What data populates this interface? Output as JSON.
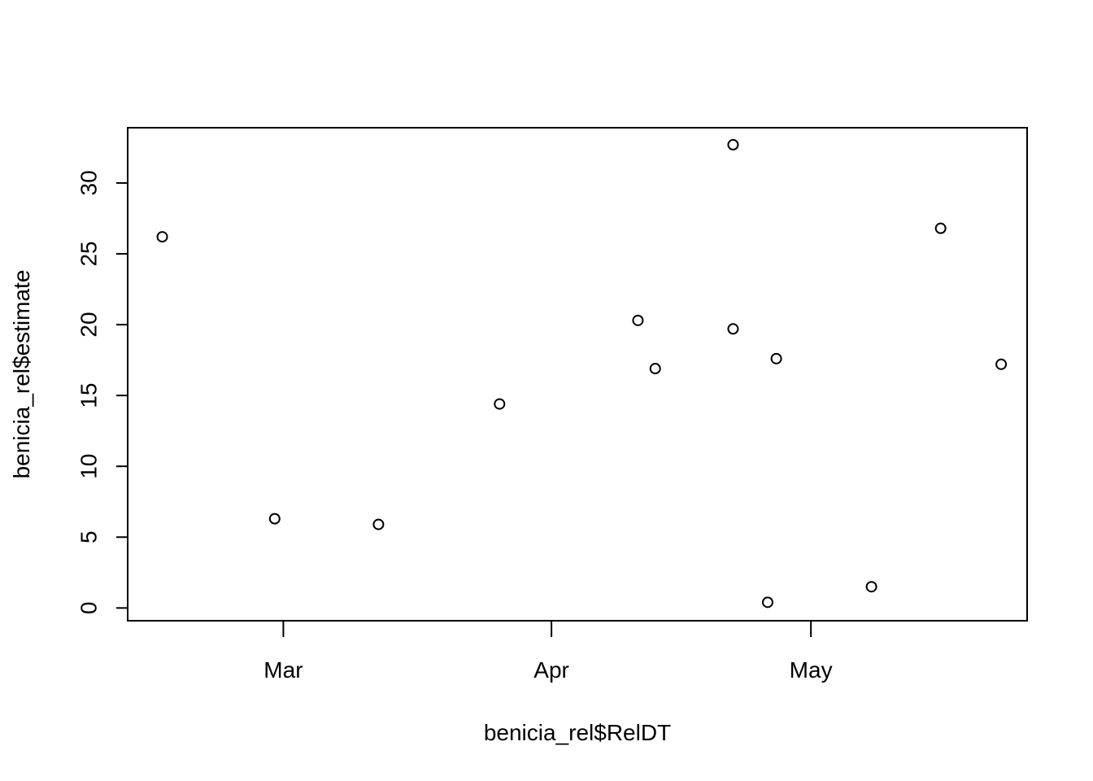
{
  "chart_data": {
    "type": "scatter",
    "title": "",
    "xlabel": "benicia_rel$RelDT",
    "ylabel": "benicia_rel$estimate",
    "x_axis_type": "date",
    "x_ticks": [
      {
        "date": "2024-03-01",
        "label": "Mar"
      },
      {
        "date": "2024-04-01",
        "label": "Apr"
      },
      {
        "date": "2024-05-01",
        "label": "May"
      }
    ],
    "y_ticks": [
      0,
      5,
      10,
      15,
      20,
      25,
      30
    ],
    "xlim": [
      "2024-02-12",
      "2024-05-26"
    ],
    "ylim": [
      -0.9,
      33.9
    ],
    "grid": false,
    "legend": "none",
    "marker": "open-circle",
    "points": [
      {
        "x": "2024-02-16",
        "y": 26.2
      },
      {
        "x": "2024-02-29",
        "y": 6.3
      },
      {
        "x": "2024-03-12",
        "y": 5.9
      },
      {
        "x": "2024-03-26",
        "y": 14.4
      },
      {
        "x": "2024-04-11",
        "y": 20.3
      },
      {
        "x": "2024-04-13",
        "y": 16.9
      },
      {
        "x": "2024-04-22",
        "y": 19.7
      },
      {
        "x": "2024-04-22",
        "y": 32.7
      },
      {
        "x": "2024-04-26",
        "y": 0.4
      },
      {
        "x": "2024-04-27",
        "y": 17.6
      },
      {
        "x": "2024-05-08",
        "y": 1.5
      },
      {
        "x": "2024-05-16",
        "y": 26.8
      },
      {
        "x": "2024-05-23",
        "y": 17.2
      }
    ]
  },
  "colors": {
    "foreground": "#000000",
    "background": "#ffffff"
  }
}
